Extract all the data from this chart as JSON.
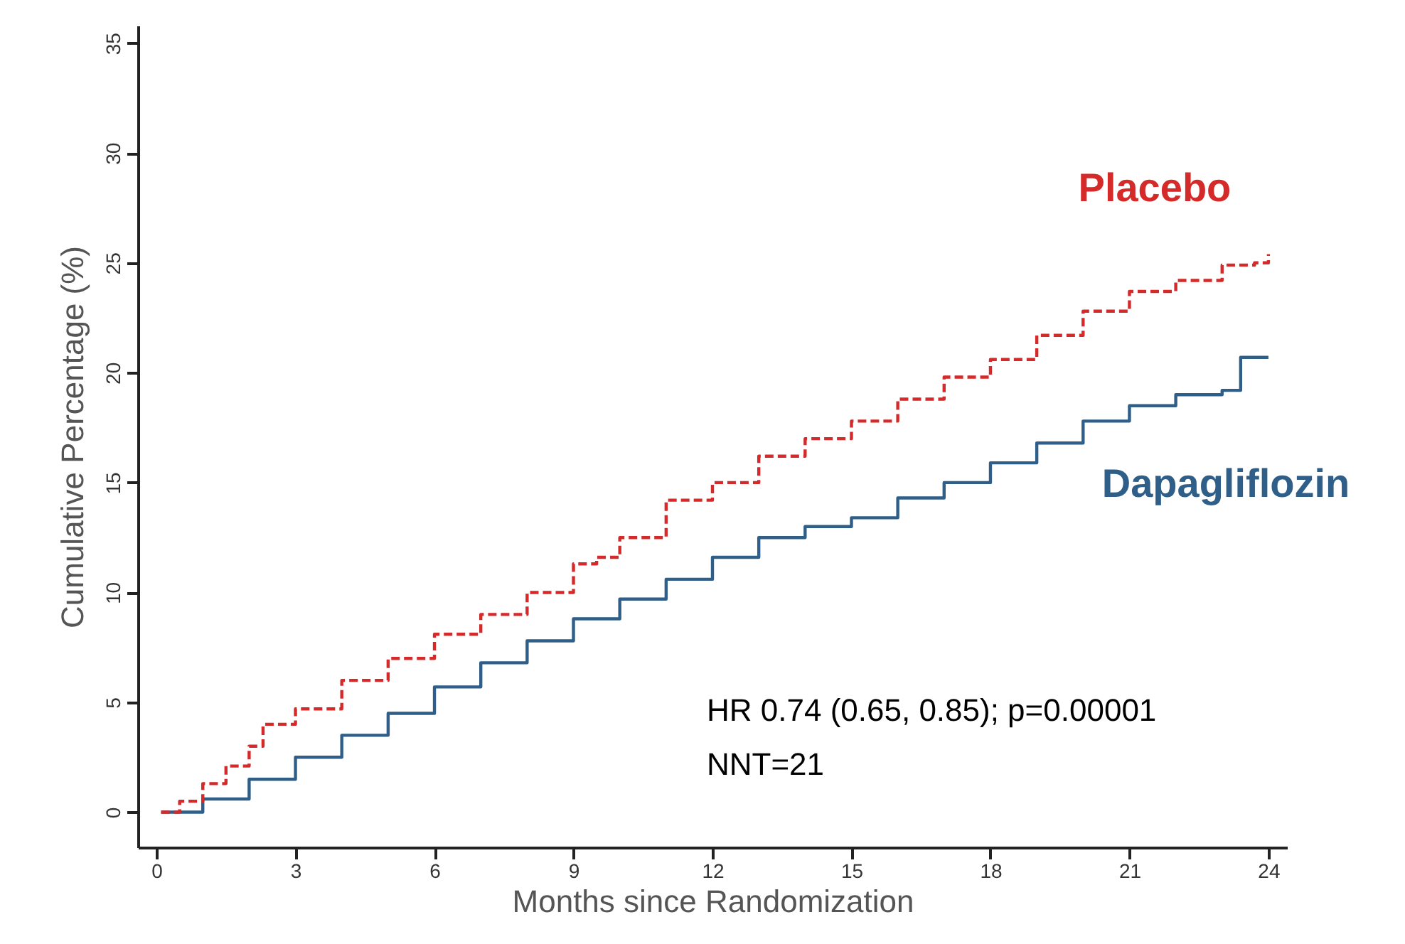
{
  "chart_data": {
    "type": "step",
    "xlabel": "Months since Randomization",
    "ylabel": "Cumulative Percentage (%)",
    "xlim": [
      -0.4,
      24.4
    ],
    "xticks": [
      0,
      3,
      6,
      9,
      12,
      15,
      18,
      21,
      24
    ],
    "ylim": [
      -1.6,
      35.8
    ],
    "yticks": [
      0,
      5,
      10,
      15,
      20,
      25,
      30,
      35
    ],
    "grid": false,
    "legend": false,
    "series": [
      {
        "name": "Placebo",
        "color": "#d42a2a",
        "line_style": "dashed",
        "x": [
          0.1,
          0.5,
          1,
          1.5,
          2,
          2.3,
          3,
          4,
          5,
          6,
          7,
          8,
          9,
          9.5,
          10,
          11,
          12,
          13,
          14,
          15,
          16,
          17,
          18,
          19,
          20,
          21,
          22,
          23,
          23.7,
          24
        ],
        "values": [
          0,
          0.5,
          1.3,
          2.1,
          3.0,
          4.0,
          4.7,
          6.0,
          7.0,
          8.1,
          9.0,
          10.0,
          11.3,
          11.6,
          12.5,
          14.2,
          15.0,
          16.2,
          17.0,
          17.8,
          18.8,
          19.8,
          20.6,
          21.7,
          22.8,
          23.7,
          24.2,
          24.9,
          25.0,
          25.4
        ]
      },
      {
        "name": "Dapagliflozin",
        "color": "#2f5f88",
        "line_style": "solid",
        "x": [
          0.1,
          1,
          2,
          3,
          4,
          5,
          6,
          7,
          8,
          9,
          10,
          11,
          12,
          13,
          14,
          15,
          16,
          17,
          18,
          19,
          20,
          21,
          22,
          23,
          23.4,
          24
        ],
        "values": [
          0,
          0.6,
          1.5,
          2.5,
          3.5,
          4.5,
          5.7,
          6.8,
          7.8,
          8.8,
          9.7,
          10.6,
          11.6,
          12.5,
          13.0,
          13.4,
          14.3,
          15.0,
          15.9,
          16.8,
          17.8,
          18.5,
          19.0,
          19.2,
          20.7,
          20.7
        ]
      }
    ],
    "annotations": [
      "HR 0.74 (0.65, 0.85); p=0.00001",
      "NNT=21"
    ]
  }
}
